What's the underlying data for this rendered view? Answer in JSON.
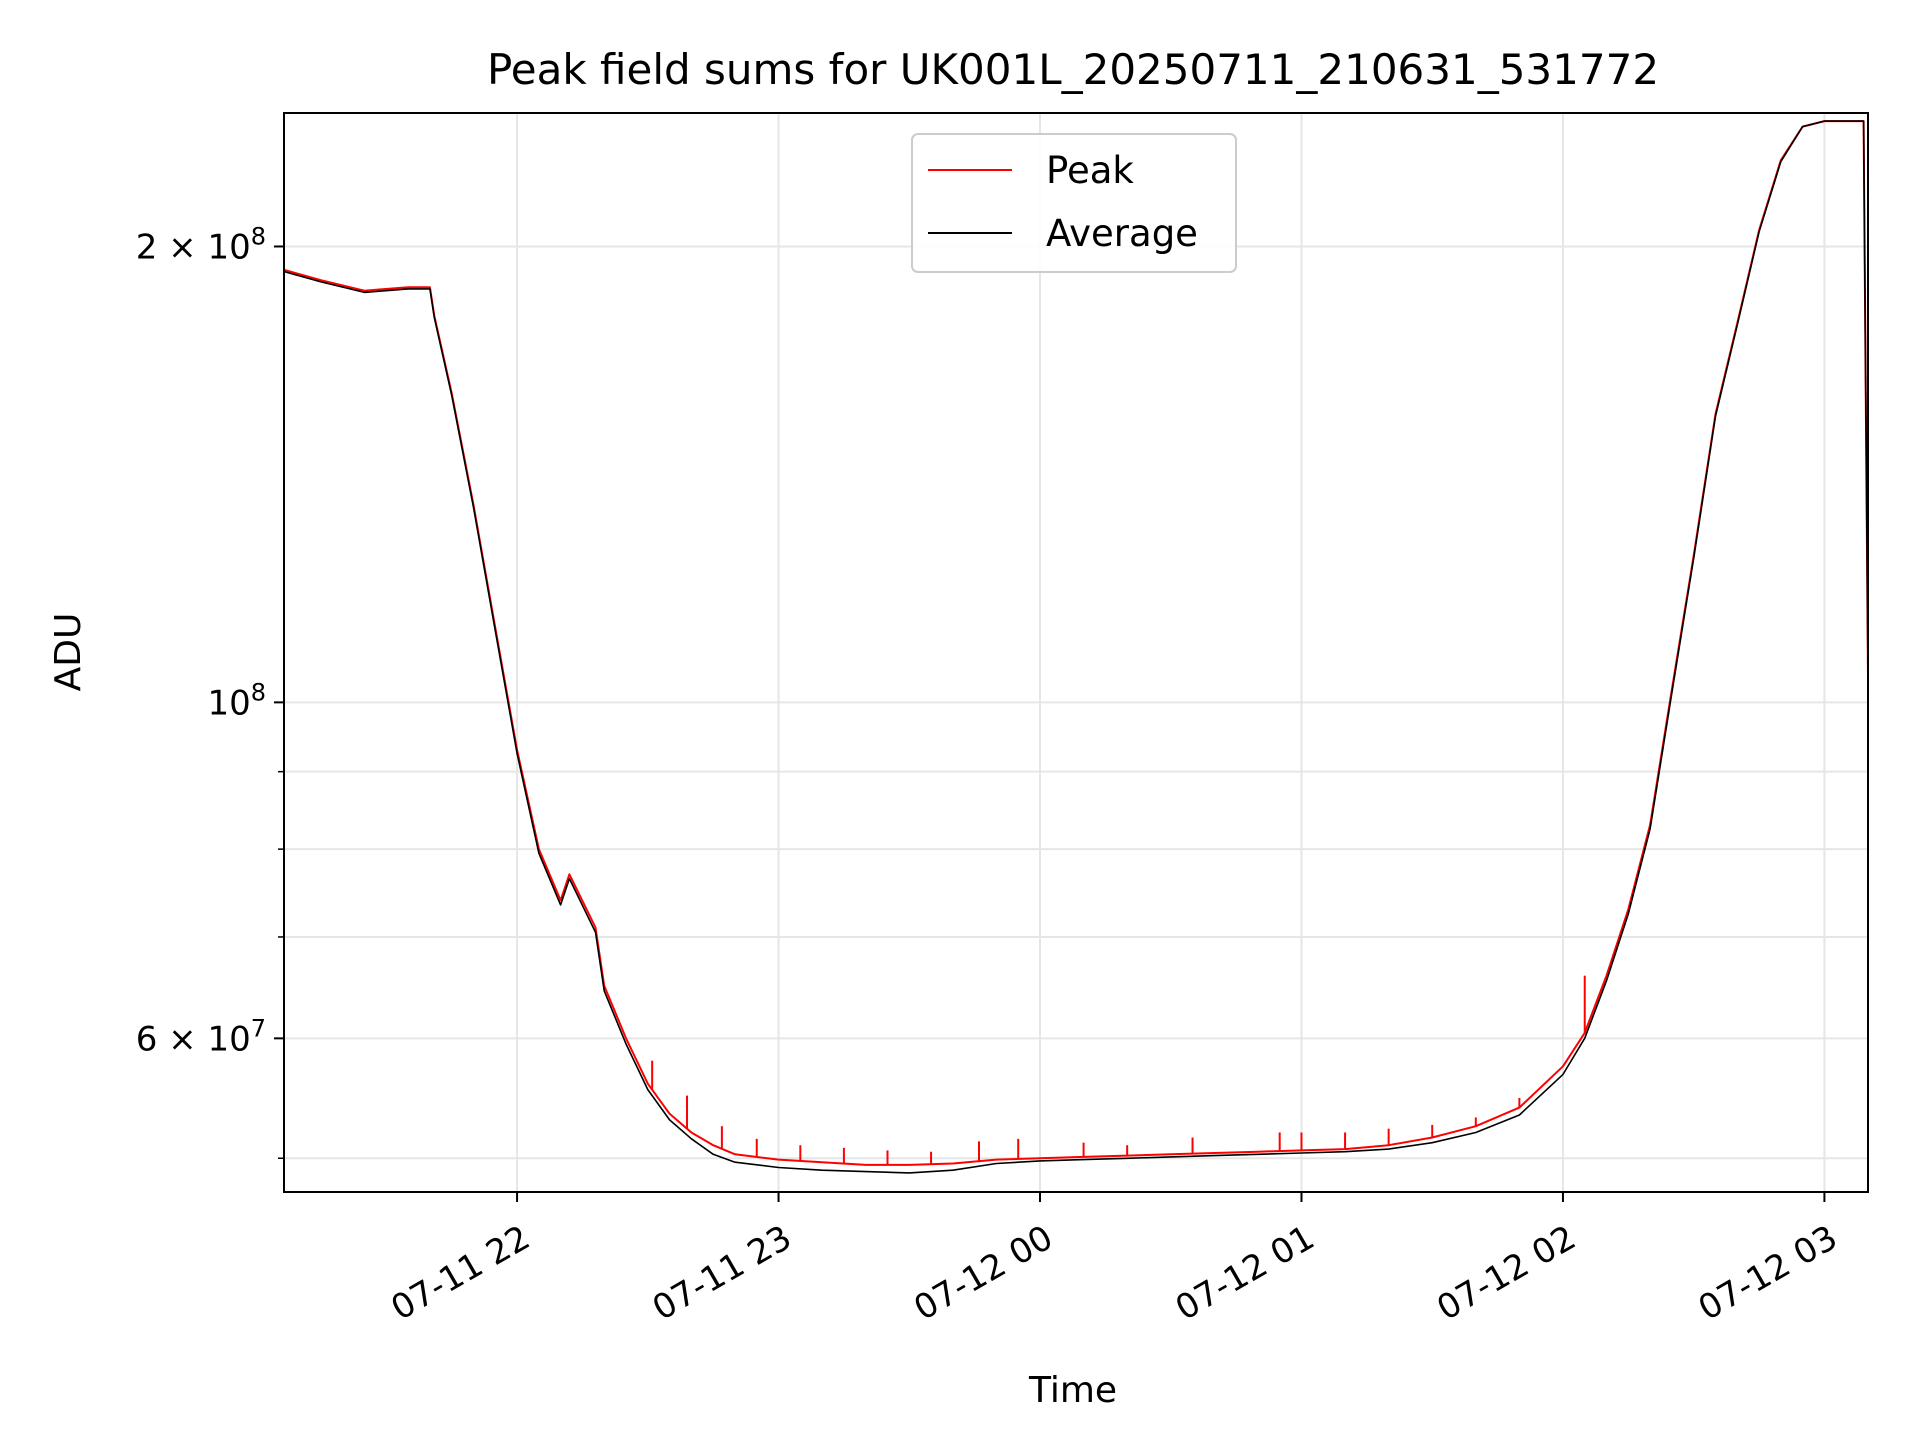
{
  "chart_data": {
    "type": "line",
    "title": "Peak field sums for UK001L_20250711_210631_531772",
    "xlabel": "Time",
    "ylabel": "ADU",
    "yscale": "log",
    "xlim": [
      "2025-07-11 21:06:31",
      "2025-07-12 03:10:00"
    ],
    "ylim": [
      47500000,
      245000000
    ],
    "grid": true,
    "legend_position": "top-center",
    "x_ticks": [
      {
        "value": "2025-07-11 22:00",
        "label": "07-11 22"
      },
      {
        "value": "2025-07-11 23:00",
        "label": "07-11 23"
      },
      {
        "value": "2025-07-12 00:00",
        "label": "07-12 00"
      },
      {
        "value": "2025-07-12 01:00",
        "label": "07-12 01"
      },
      {
        "value": "2025-07-12 02:00",
        "label": "07-12 02"
      },
      {
        "value": "2025-07-12 03:00",
        "label": "07-12 03"
      }
    ],
    "y_ticks_major": [
      {
        "value": 200000000,
        "label": "2 × 10^8",
        "mantissa": "2",
        "exponent": "8"
      },
      {
        "value": 100000000,
        "label": "10^8",
        "mantissa": "",
        "exponent": "8"
      },
      {
        "value": 60000000,
        "label": "6 × 10^7",
        "mantissa": "6",
        "exponent": "7"
      }
    ],
    "y_ticks_minor": [
      50000000,
      70000000,
      80000000,
      90000000
    ],
    "series": [
      {
        "name": "Peak",
        "color": "#ff0000",
        "x": [
          "2025-07-11 21:06:31",
          "2025-07-11 21:15",
          "2025-07-11 21:25",
          "2025-07-11 21:35",
          "2025-07-11 21:40",
          "2025-07-11 21:41",
          "2025-07-11 21:45",
          "2025-07-11 21:50",
          "2025-07-11 21:55",
          "2025-07-11 22:00",
          "2025-07-11 22:05",
          "2025-07-11 22:10",
          "2025-07-11 22:12",
          "2025-07-11 22:18",
          "2025-07-11 22:20",
          "2025-07-11 22:25",
          "2025-07-11 22:30",
          "2025-07-11 22:35",
          "2025-07-11 22:40",
          "2025-07-11 22:45",
          "2025-07-11 22:50",
          "2025-07-11 23:00",
          "2025-07-11 23:10",
          "2025-07-11 23:20",
          "2025-07-11 23:30",
          "2025-07-11 23:40",
          "2025-07-11 23:50",
          "2025-07-12 00:00",
          "2025-07-12 00:10",
          "2025-07-12 00:20",
          "2025-07-12 00:30",
          "2025-07-12 00:40",
          "2025-07-12 00:50",
          "2025-07-12 01:00",
          "2025-07-12 01:10",
          "2025-07-12 01:20",
          "2025-07-12 01:30",
          "2025-07-12 01:40",
          "2025-07-12 01:50",
          "2025-07-12 02:00",
          "2025-07-12 02:05",
          "2025-07-12 02:10",
          "2025-07-12 02:15",
          "2025-07-12 02:20",
          "2025-07-12 02:25",
          "2025-07-12 02:30",
          "2025-07-12 02:35",
          "2025-07-12 02:40",
          "2025-07-12 02:45",
          "2025-07-12 02:50",
          "2025-07-12 02:55",
          "2025-07-12 03:00",
          "2025-07-12 03:05",
          "2025-07-12 03:09",
          "2025-07-12 03:10"
        ],
        "y": [
          193000000,
          190000000,
          187000000,
          188000000,
          188000000,
          180000000,
          160000000,
          135000000,
          112000000,
          93000000,
          80000000,
          74000000,
          77000000,
          71000000,
          65000000,
          60000000,
          56000000,
          53500000,
          52000000,
          51000000,
          50300000,
          49900000,
          49700000,
          49500000,
          49500000,
          49600000,
          49900000,
          50000000,
          50100000,
          50200000,
          50300000,
          50400000,
          50500000,
          50600000,
          50700000,
          51000000,
          51600000,
          52500000,
          54000000,
          57500000,
          60500000,
          66000000,
          73000000,
          83000000,
          102000000,
          125000000,
          155000000,
          178000000,
          205000000,
          228000000,
          240000000,
          242000000,
          242000000,
          242000000,
          104000000
        ],
        "spikes": [
          {
            "x": "2025-07-11 22:31",
            "y": 58000000
          },
          {
            "x": "2025-07-11 22:39",
            "y": 55000000
          },
          {
            "x": "2025-07-11 22:47",
            "y": 52500000
          },
          {
            "x": "2025-07-11 22:55",
            "y": 51500000
          },
          {
            "x": "2025-07-11 23:05",
            "y": 51000000
          },
          {
            "x": "2025-07-11 23:15",
            "y": 50800000
          },
          {
            "x": "2025-07-11 23:25",
            "y": 50600000
          },
          {
            "x": "2025-07-11 23:35",
            "y": 50500000
          },
          {
            "x": "2025-07-11 23:46",
            "y": 51300000
          },
          {
            "x": "2025-07-11 23:55",
            "y": 51500000
          },
          {
            "x": "2025-07-12 00:10",
            "y": 51200000
          },
          {
            "x": "2025-07-12 00:20",
            "y": 51000000
          },
          {
            "x": "2025-07-12 00:35",
            "y": 51600000
          },
          {
            "x": "2025-07-12 00:55",
            "y": 52000000
          },
          {
            "x": "2025-07-12 01:00",
            "y": 52000000
          },
          {
            "x": "2025-07-12 01:10",
            "y": 52000000
          },
          {
            "x": "2025-07-12 01:20",
            "y": 52300000
          },
          {
            "x": "2025-07-12 01:30",
            "y": 52600000
          },
          {
            "x": "2025-07-12 01:40",
            "y": 53200000
          },
          {
            "x": "2025-07-12 01:50",
            "y": 54800000
          },
          {
            "x": "2025-07-12 02:05",
            "y": 66000000
          }
        ]
      },
      {
        "name": "Average",
        "color": "#000000",
        "x": [
          "2025-07-11 21:06:31",
          "2025-07-11 21:15",
          "2025-07-11 21:25",
          "2025-07-11 21:35",
          "2025-07-11 21:40",
          "2025-07-11 21:41",
          "2025-07-11 21:45",
          "2025-07-11 21:50",
          "2025-07-11 21:55",
          "2025-07-11 22:00",
          "2025-07-11 22:05",
          "2025-07-11 22:10",
          "2025-07-11 22:12",
          "2025-07-11 22:18",
          "2025-07-11 22:20",
          "2025-07-11 22:25",
          "2025-07-11 22:30",
          "2025-07-11 22:35",
          "2025-07-11 22:40",
          "2025-07-11 22:45",
          "2025-07-11 22:50",
          "2025-07-11 23:00",
          "2025-07-11 23:10",
          "2025-07-11 23:20",
          "2025-07-11 23:30",
          "2025-07-11 23:40",
          "2025-07-11 23:50",
          "2025-07-12 00:00",
          "2025-07-12 00:10",
          "2025-07-12 00:20",
          "2025-07-12 00:30",
          "2025-07-12 00:40",
          "2025-07-12 00:50",
          "2025-07-12 01:00",
          "2025-07-12 01:10",
          "2025-07-12 01:20",
          "2025-07-12 01:30",
          "2025-07-12 01:40",
          "2025-07-12 01:50",
          "2025-07-12 02:00",
          "2025-07-12 02:05",
          "2025-07-12 02:10",
          "2025-07-12 02:15",
          "2025-07-12 02:20",
          "2025-07-12 02:25",
          "2025-07-12 02:30",
          "2025-07-12 02:35",
          "2025-07-12 02:40",
          "2025-07-12 02:45",
          "2025-07-12 02:50",
          "2025-07-12 02:55",
          "2025-07-12 03:00",
          "2025-07-12 03:05",
          "2025-07-12 03:09",
          "2025-07-12 03:10"
        ],
        "y": [
          192500000,
          189500000,
          186500000,
          187500000,
          187500000,
          179500000,
          159500000,
          134500000,
          111500000,
          92500000,
          79500000,
          73500000,
          76500000,
          70500000,
          64500000,
          59500000,
          55500000,
          53000000,
          51500000,
          50300000,
          49700000,
          49300000,
          49100000,
          49000000,
          48900000,
          49100000,
          49600000,
          49800000,
          49900000,
          50000000,
          50100000,
          50200000,
          50300000,
          50400000,
          50500000,
          50700000,
          51200000,
          52000000,
          53400000,
          56800000,
          60000000,
          65500000,
          72500000,
          82500000,
          101500000,
          124500000,
          154500000,
          177500000,
          204500000,
          227500000,
          240000000,
          242000000,
          242000000,
          242000000,
          104000000
        ]
      }
    ]
  }
}
